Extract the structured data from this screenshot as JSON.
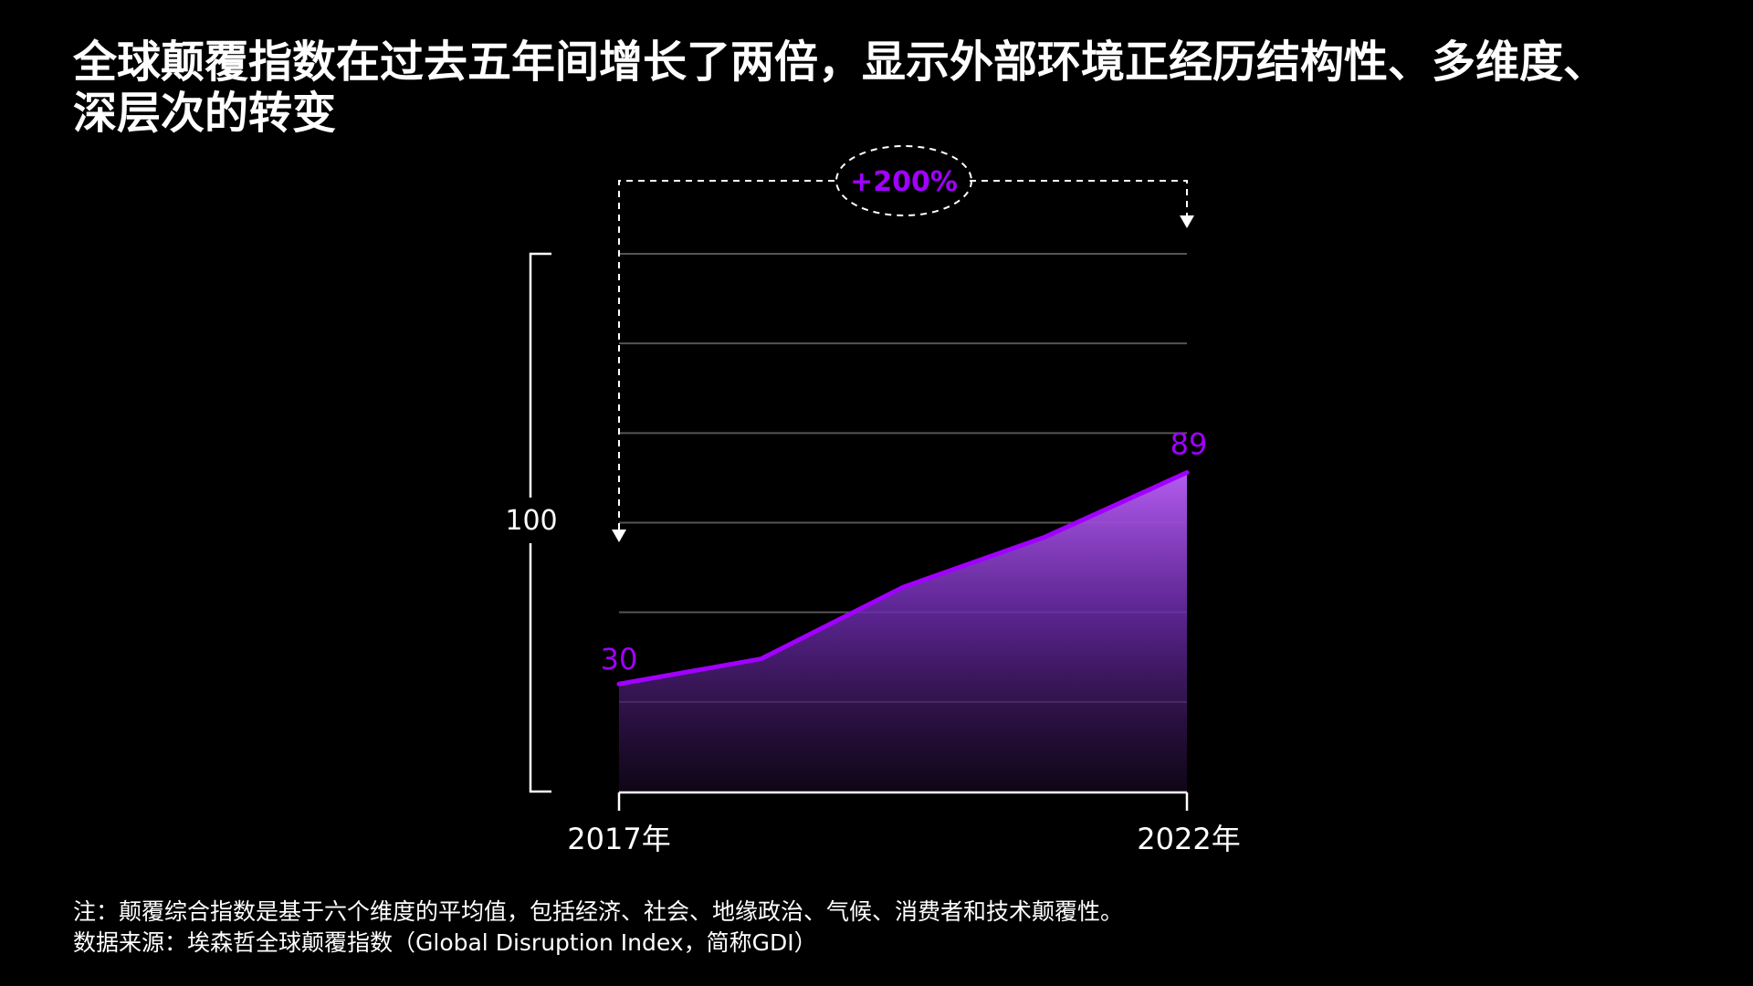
{
  "title_lines": [
    "全球颠覆指数在过去五年间增长了两倍，显示外部环境正经历结构性、多维度、",
    "深层次的转变"
  ],
  "notes": {
    "note": "注：颠覆综合指数是基于六个维度的平均值，包括经济、社会、地缘政治、气候、消费者和技术颠覆性。",
    "source": "数据来源：埃森哲全球颠覆指数（Global Disruption Index，简称GDI）"
  },
  "colors": {
    "accent": "#a100ff",
    "accent_light": "#b45cf0",
    "grid": "#555555",
    "axis": "#ffffff"
  },
  "chart_data": {
    "type": "area",
    "x_labels": [
      "2017年",
      "2022年"
    ],
    "series": [
      {
        "values": [
          30,
          37,
          57,
          71,
          89
        ]
      }
    ],
    "start_label": "30",
    "end_label": "89",
    "y_scale_label": "100",
    "change_label": "+200%",
    "ylim": [
      0,
      150
    ],
    "grid": true
  }
}
